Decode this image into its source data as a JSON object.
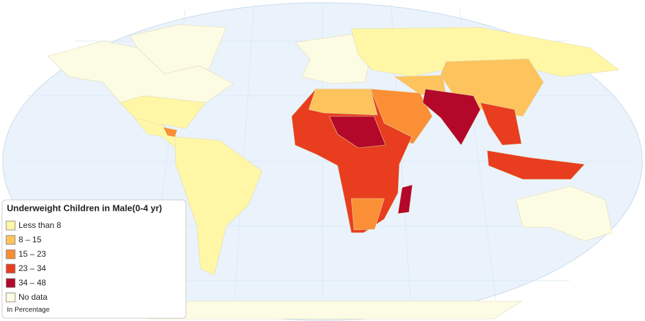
{
  "legend": {
    "title": "Underweight Children in Male(0-4 yr)",
    "items": [
      {
        "label": "Less than 8",
        "color": "#fff7a6"
      },
      {
        "label": "8 – 15",
        "color": "#fdc35c"
      },
      {
        "label": "15 – 23",
        "color": "#fa8f35"
      },
      {
        "label": "23 – 34",
        "color": "#e83d1f"
      },
      {
        "label": "34 – 48",
        "color": "#b3082a"
      },
      {
        "label": "No data",
        "color": "#fcfce4"
      }
    ],
    "note": "In Percentage"
  }
}
